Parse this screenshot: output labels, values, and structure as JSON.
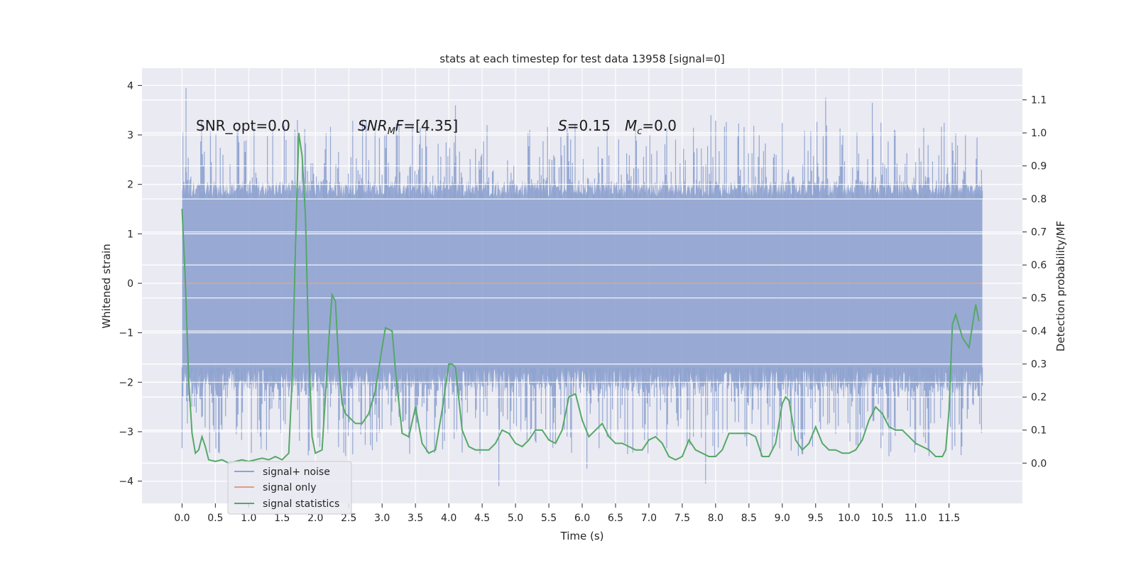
{
  "chart_data": {
    "type": "line",
    "title": "stats at each timestep for test data 13958 [signal=0]",
    "xlabel": "Time (s)",
    "ylabel": "Whitened strain",
    "y2label": "Detection probability/MF",
    "xlim": [
      -0.6,
      12.6
    ],
    "ylim": [
      -4.45,
      4.35
    ],
    "y2lim": [
      -0.122,
      1.196
    ],
    "x_ticks": [
      "0.0",
      "0.5",
      "1.0",
      "1.5",
      "2.0",
      "2.5",
      "3.0",
      "3.5",
      "4.0",
      "4.5",
      "5.0",
      "5.5",
      "6.0",
      "6.5",
      "7.0",
      "7.5",
      "8.0",
      "8.5",
      "9.0",
      "9.5",
      "10.0",
      "10.5",
      "11.0",
      "11.5"
    ],
    "y_ticks": [
      "4",
      "3",
      "2",
      "1",
      "0",
      "−1",
      "−2",
      "−3",
      "−4"
    ],
    "y2_ticks": [
      "1.1",
      "1.0",
      "0.9",
      "0.8",
      "0.7",
      "0.6",
      "0.5",
      "0.4",
      "0.3",
      "0.2",
      "0.1",
      "0.0"
    ],
    "grid": true,
    "legend_position": "lower-left",
    "annotations": {
      "snr_opt": "SNR_opt=0.0",
      "snr_mf": "[4.35]",
      "snr_mf_prefix": "SNR",
      "snr_mf_sub": "M",
      "snr_mf_suffix": "F=",
      "s_stat": "S=0.15",
      "s_var": "S",
      "s_value": "=0.15",
      "mc_var": "M",
      "mc_sub": "c",
      "mc_value": "=0.0"
    },
    "series": [
      {
        "name": "signal+ noise",
        "color": "#8fa3d0",
        "description_level": "noise band approximately ±1.8, spikes up to 3.9 and down to −4.1",
        "x_range": [
          0.0,
          12.0
        ],
        "peak_values": [
          {
            "x": 0.06,
            "y": 3.95
          },
          {
            "x": 1.73,
            "y": 3.3
          },
          {
            "x": 4.1,
            "y": 3.6
          },
          {
            "x": 7.93,
            "y": 3.4
          },
          {
            "x": 9.65,
            "y": 3.75
          },
          {
            "x": 10.35,
            "y": 3.65
          },
          {
            "x": 4.75,
            "y": -4.1
          },
          {
            "x": 7.85,
            "y": -4.05
          },
          {
            "x": 6.07,
            "y": -3.75
          }
        ]
      },
      {
        "name": "signal only",
        "color": "#e39c82",
        "x": [
          0.0,
          12.0
        ],
        "y": [
          0.0,
          0.0
        ]
      },
      {
        "name": "signal statistics",
        "color": "#55a868",
        "x": [
          0.0,
          0.05,
          0.1,
          0.15,
          0.2,
          0.25,
          0.3,
          0.35,
          0.4,
          0.5,
          0.6,
          0.7,
          0.8,
          0.9,
          1.0,
          1.1,
          1.2,
          1.3,
          1.4,
          1.5,
          1.6,
          1.65,
          1.7,
          1.75,
          1.8,
          1.85,
          1.9,
          1.95,
          2.0,
          2.1,
          2.15,
          2.2,
          2.25,
          2.3,
          2.35,
          2.4,
          2.45,
          2.5,
          2.6,
          2.7,
          2.8,
          2.9,
          3.0,
          3.05,
          3.15,
          3.2,
          3.3,
          3.4,
          3.5,
          3.6,
          3.7,
          3.8,
          3.9,
          4.0,
          4.05,
          4.1,
          4.2,
          4.3,
          4.4,
          4.5,
          4.6,
          4.7,
          4.8,
          4.9,
          5.0,
          5.1,
          5.2,
          5.3,
          5.4,
          5.5,
          5.6,
          5.7,
          5.8,
          5.9,
          6.0,
          6.1,
          6.2,
          6.3,
          6.4,
          6.5,
          6.6,
          6.7,
          6.8,
          6.9,
          7.0,
          7.1,
          7.2,
          7.3,
          7.4,
          7.5,
          7.6,
          7.7,
          7.8,
          7.9,
          8.0,
          8.1,
          8.2,
          8.3,
          8.4,
          8.5,
          8.6,
          8.7,
          8.8,
          8.9,
          9.0,
          9.05,
          9.1,
          9.2,
          9.3,
          9.4,
          9.5,
          9.6,
          9.7,
          9.8,
          9.9,
          10.0,
          10.1,
          10.2,
          10.3,
          10.4,
          10.5,
          10.6,
          10.7,
          10.8,
          10.9,
          11.0,
          11.1,
          11.2,
          11.3,
          11.35,
          11.4,
          11.45,
          11.5,
          11.55,
          11.6,
          11.7,
          11.8,
          11.9,
          11.95
        ],
        "y": [
          0.77,
          0.55,
          0.25,
          0.09,
          0.03,
          0.04,
          0.08,
          0.05,
          0.01,
          0.005,
          0.01,
          0.0,
          0.005,
          0.01,
          0.005,
          0.01,
          0.015,
          0.01,
          0.02,
          0.01,
          0.03,
          0.25,
          0.65,
          1.0,
          0.93,
          0.75,
          0.35,
          0.08,
          0.03,
          0.04,
          0.2,
          0.37,
          0.51,
          0.49,
          0.3,
          0.18,
          0.15,
          0.14,
          0.12,
          0.12,
          0.15,
          0.22,
          0.35,
          0.41,
          0.4,
          0.28,
          0.09,
          0.08,
          0.17,
          0.06,
          0.03,
          0.04,
          0.16,
          0.3,
          0.3,
          0.29,
          0.1,
          0.05,
          0.04,
          0.04,
          0.04,
          0.06,
          0.1,
          0.09,
          0.06,
          0.05,
          0.07,
          0.1,
          0.1,
          0.07,
          0.06,
          0.1,
          0.2,
          0.21,
          0.13,
          0.08,
          0.1,
          0.12,
          0.08,
          0.06,
          0.06,
          0.05,
          0.04,
          0.04,
          0.07,
          0.08,
          0.06,
          0.02,
          0.01,
          0.02,
          0.07,
          0.04,
          0.03,
          0.02,
          0.02,
          0.04,
          0.09,
          0.09,
          0.09,
          0.09,
          0.08,
          0.02,
          0.02,
          0.06,
          0.18,
          0.2,
          0.19,
          0.07,
          0.04,
          0.06,
          0.11,
          0.06,
          0.04,
          0.04,
          0.03,
          0.03,
          0.04,
          0.07,
          0.13,
          0.17,
          0.15,
          0.11,
          0.1,
          0.1,
          0.08,
          0.06,
          0.05,
          0.04,
          0.02,
          0.02,
          0.02,
          0.04,
          0.16,
          0.42,
          0.45,
          0.38,
          0.35,
          0.48,
          0.43
        ]
      }
    ],
    "legend": [
      "signal+ noise",
      "signal only",
      "signal statistics"
    ]
  }
}
